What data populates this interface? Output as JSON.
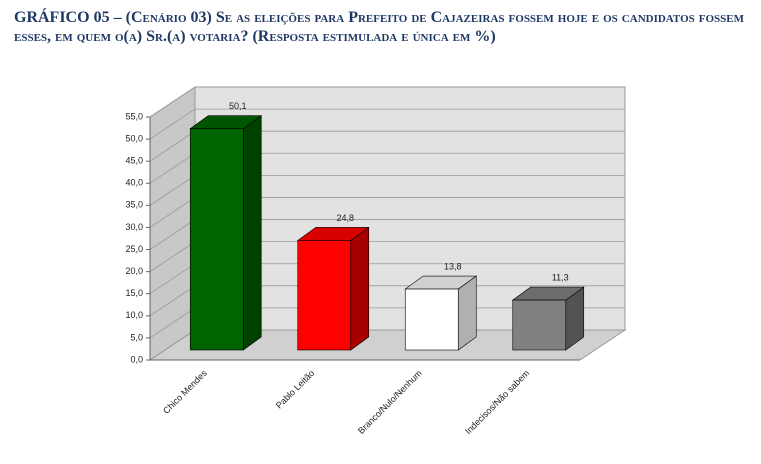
{
  "chart_data": {
    "type": "bar3d",
    "title": "GRÁFICO 05 – (Cenário 03) Se as eleições para Prefeito de Cajazeiras fossem hoje e os candidatos fossem esses, em quem o(a) Sr.(a) votaria? (Resposta estimulada e única em %)",
    "categories": [
      "Chico Mendes",
      "Pablo Leitão",
      "Branco/Nulo/Nenhum",
      "Indecisos/Não sabem"
    ],
    "values": [
      50.1,
      24.8,
      13.8,
      11.3
    ],
    "value_labels": [
      "50,1",
      "24,8",
      "13,8",
      "11,3"
    ],
    "colors": [
      "#006400",
      "#ff0000",
      "#ffffff",
      "#808080"
    ],
    "ylim": [
      0,
      55
    ],
    "yticks": [
      {
        "value": 0,
        "label": "0,0"
      },
      {
        "value": 5,
        "label": "5,0"
      },
      {
        "value": 10,
        "label": "10,0"
      },
      {
        "value": 15,
        "label": "15,0"
      },
      {
        "value": 20,
        "label": "20,0"
      },
      {
        "value": 25,
        "label": "25,0"
      },
      {
        "value": 30,
        "label": "30,0"
      },
      {
        "value": 35,
        "label": "35,0"
      },
      {
        "value": 40,
        "label": "40,0"
      },
      {
        "value": 45,
        "label": "45,0"
      },
      {
        "value": 50,
        "label": "50,0"
      },
      {
        "value": 55,
        "label": "55,0"
      }
    ],
    "grid": true
  }
}
